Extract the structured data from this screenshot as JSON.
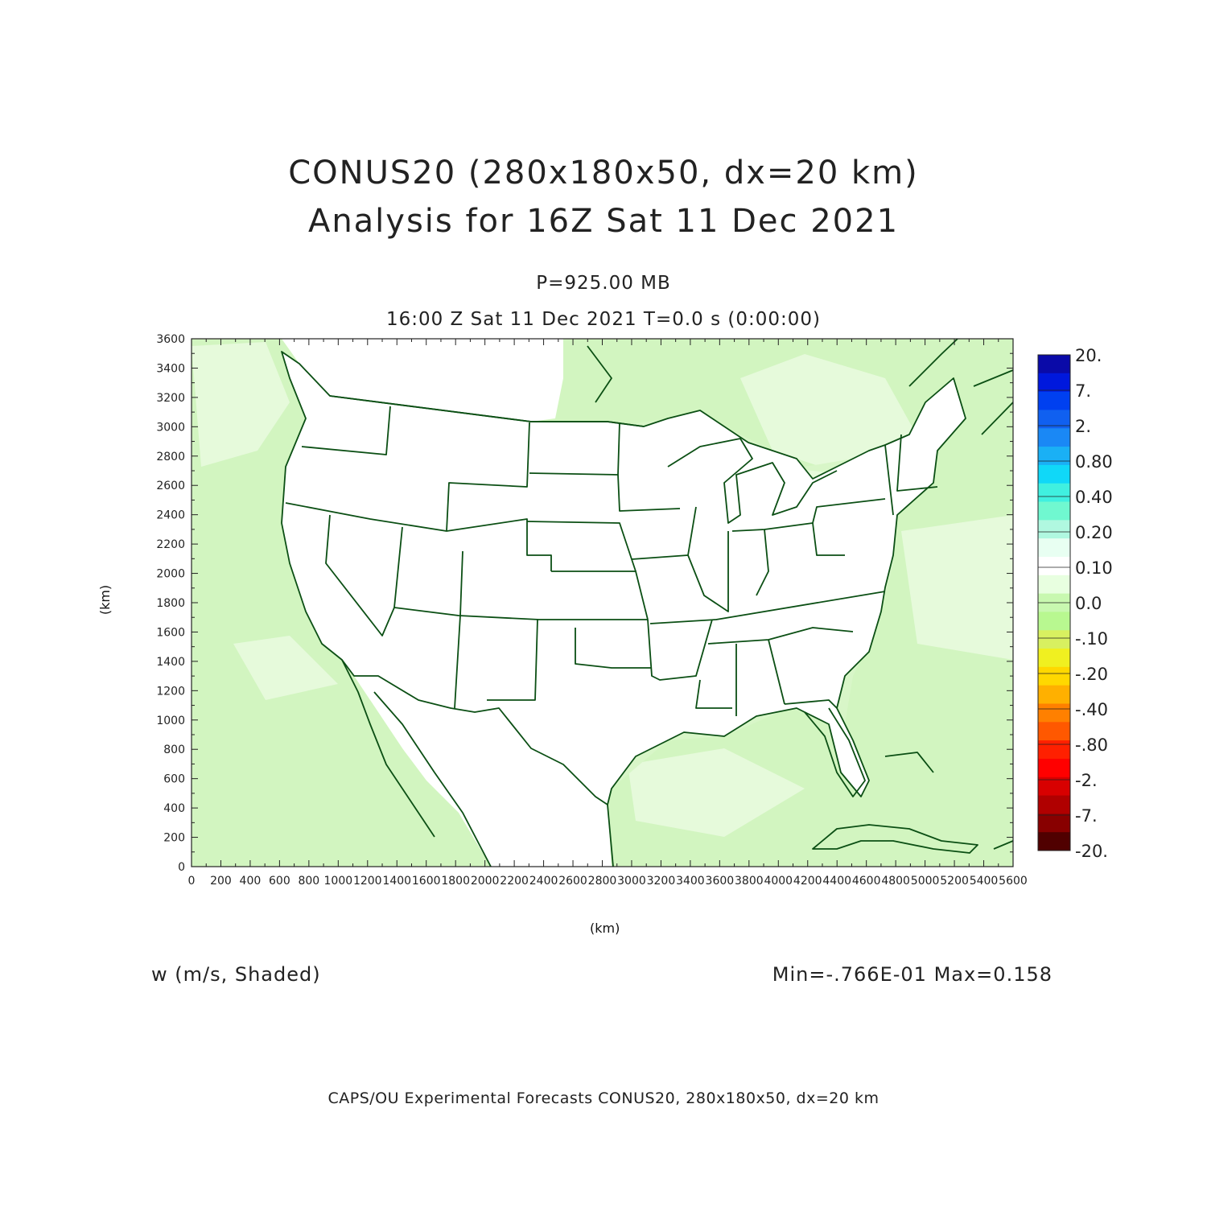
{
  "header": {
    "title_line1": "CONUS20 (280x180x50, dx=20 km)",
    "title_line2": "Analysis for 16Z Sat 11 Dec 2021",
    "level": "P=925.00 MB",
    "valid_time": "16:00 Z Sat 11 Dec 2021    T=0.0 s (0:00:00)"
  },
  "plot": {
    "variable": "w (m/s, Shaded)",
    "minmax": "Min=-.766E-01 Max=0.158",
    "x_unit": "(km)",
    "y_unit": "(km)",
    "x_range_km": [
      0,
      5600
    ],
    "y_range_km": [
      0,
      3600
    ],
    "x_ticks": [
      "0",
      "200",
      "400",
      "600",
      "800",
      "1000",
      "1200",
      "1400",
      "1600",
      "1800",
      "2000",
      "2200",
      "2400",
      "2600",
      "2800",
      "3000",
      "3200",
      "3400",
      "3600",
      "3800",
      "4000",
      "4200",
      "4400",
      "4600",
      "4800",
      "5000",
      "5200",
      "5400",
      "5600"
    ],
    "y_ticks": [
      "0",
      "200",
      "400",
      "600",
      "800",
      "1000",
      "1200",
      "1400",
      "1600",
      "1800",
      "2000",
      "2200",
      "2400",
      "2600",
      "2800",
      "3000",
      "3200",
      "3400",
      "3600"
    ],
    "boundary_color": "#0b4f14",
    "land_shading": "#d2f5c0",
    "land_light": "#e6fadb"
  },
  "colorbar": {
    "labels": [
      "20.",
      "7.",
      "2.",
      "0.80",
      "0.40",
      "0.20",
      "0.10",
      "0.0",
      "-.10",
      "-.20",
      "-.40",
      "-.80",
      "-2.",
      "-7.",
      "-20."
    ],
    "colors": [
      "#0a0aa8",
      "#0018dd",
      "#0040f0",
      "#1060f0",
      "#1a88f5",
      "#1ab0f5",
      "#10d8f8",
      "#40f0e0",
      "#70f8d0",
      "#b0f8e0",
      "#e8fff2",
      "#ffffff",
      "#e8ffe0",
      "#c8f8b0",
      "#b8f890",
      "#d8f060",
      "#f0f020",
      "#ffd800",
      "#ffb000",
      "#ff8000",
      "#ff5800",
      "#ff2000",
      "#ff0000",
      "#d80000",
      "#b00000",
      "#880000",
      "#500000"
    ]
  },
  "footer": "CAPS/OU Experimental Forecasts  CONUS20, 280x180x50, dx=20 km"
}
